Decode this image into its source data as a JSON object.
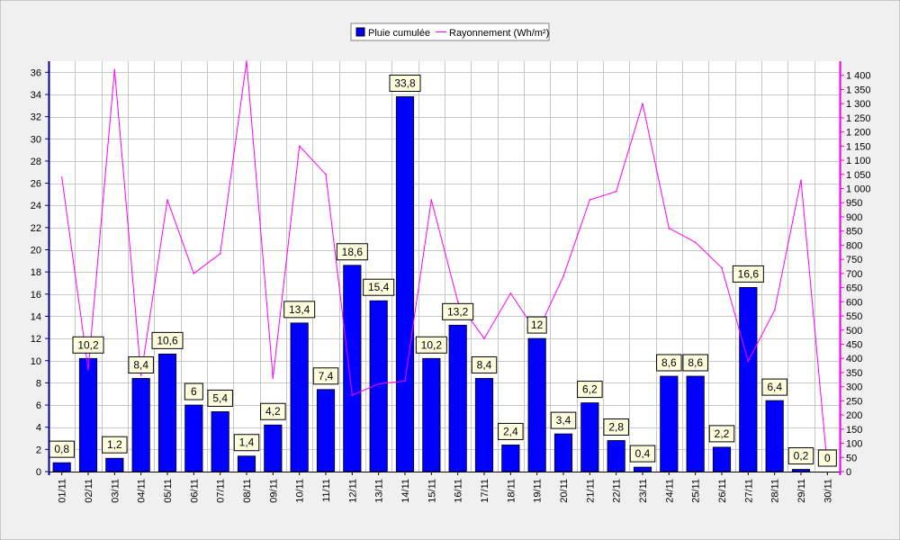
{
  "chart_data": {
    "type": "bar",
    "categories": [
      "01/11",
      "02/11",
      "03/11",
      "04/11",
      "05/11",
      "06/11",
      "07/11",
      "08/11",
      "09/11",
      "10/11",
      "11/11",
      "12/11",
      "13/11",
      "14/11",
      "15/11",
      "16/11",
      "17/11",
      "18/11",
      "19/11",
      "20/11",
      "21/11",
      "22/11",
      "23/11",
      "24/11",
      "25/11",
      "26/11",
      "27/11",
      "28/11",
      "29/11",
      "30/11"
    ],
    "series": [
      {
        "name": "Pluie cumulée",
        "type": "bar",
        "axis": "left",
        "color": "#0000ff",
        "values": [
          0.8,
          10.2,
          1.2,
          8.4,
          10.6,
          6,
          5.4,
          1.4,
          4.2,
          13.4,
          7.4,
          18.6,
          15.4,
          33.8,
          10.2,
          13.2,
          8.4,
          2.4,
          12,
          3.4,
          6.2,
          2.8,
          0.4,
          8.6,
          8.6,
          2.2,
          16.6,
          6.4,
          0.2,
          0
        ],
        "labels": [
          "0,8",
          "10,2",
          "1,2",
          "8,4",
          "10,6",
          "6",
          "5,4",
          "1,4",
          "4,2",
          "13,4",
          "7,4",
          "18,6",
          "15,4",
          "33,8",
          "10,2",
          "13,2",
          "8,4",
          "2,4",
          "12",
          "3,4",
          "6,2",
          "2,8",
          "0,4",
          "8,6",
          "8,6",
          "2,2",
          "16,6",
          "6,4",
          "0,2",
          "0"
        ]
      },
      {
        "name": "Rayonnement (Wh/m²)",
        "type": "line",
        "axis": "right",
        "color": "#ff00ff",
        "values": [
          1040,
          360,
          1420,
          340,
          960,
          700,
          770,
          1450,
          330,
          1150,
          1050,
          270,
          310,
          320,
          960,
          600,
          470,
          630,
          490,
          690,
          960,
          990,
          1300,
          860,
          810,
          720,
          390,
          570,
          1030,
          20
        ]
      }
    ],
    "y_left": {
      "ylim": [
        0,
        37
      ],
      "ticks": [
        0,
        2,
        4,
        6,
        8,
        10,
        12,
        14,
        16,
        18,
        20,
        22,
        24,
        26,
        28,
        30,
        32,
        34,
        36
      ]
    },
    "y_right": {
      "ylim": [
        0,
        1450
      ],
      "ticks": [
        0,
        50,
        100,
        150,
        200,
        250,
        300,
        350,
        400,
        450,
        500,
        550,
        600,
        650,
        700,
        750,
        800,
        850,
        900,
        950,
        1000,
        1050,
        1100,
        1150,
        1200,
        1250,
        1300,
        1350,
        1400
      ],
      "tick_labels": [
        "0",
        "50",
        "100",
        "150",
        "200",
        "250",
        "300",
        "350",
        "400",
        "450",
        "500",
        "550",
        "600",
        "650",
        "700",
        "750",
        "800",
        "850",
        "900",
        "950",
        "1 000",
        "1 050",
        "1 100",
        "1 150",
        "1 200",
        "1 250",
        "1 300",
        "1 350",
        "1 400"
      ]
    },
    "grid": true,
    "legend": "top-center",
    "title": "",
    "xlabel": "",
    "ylabel": ""
  }
}
